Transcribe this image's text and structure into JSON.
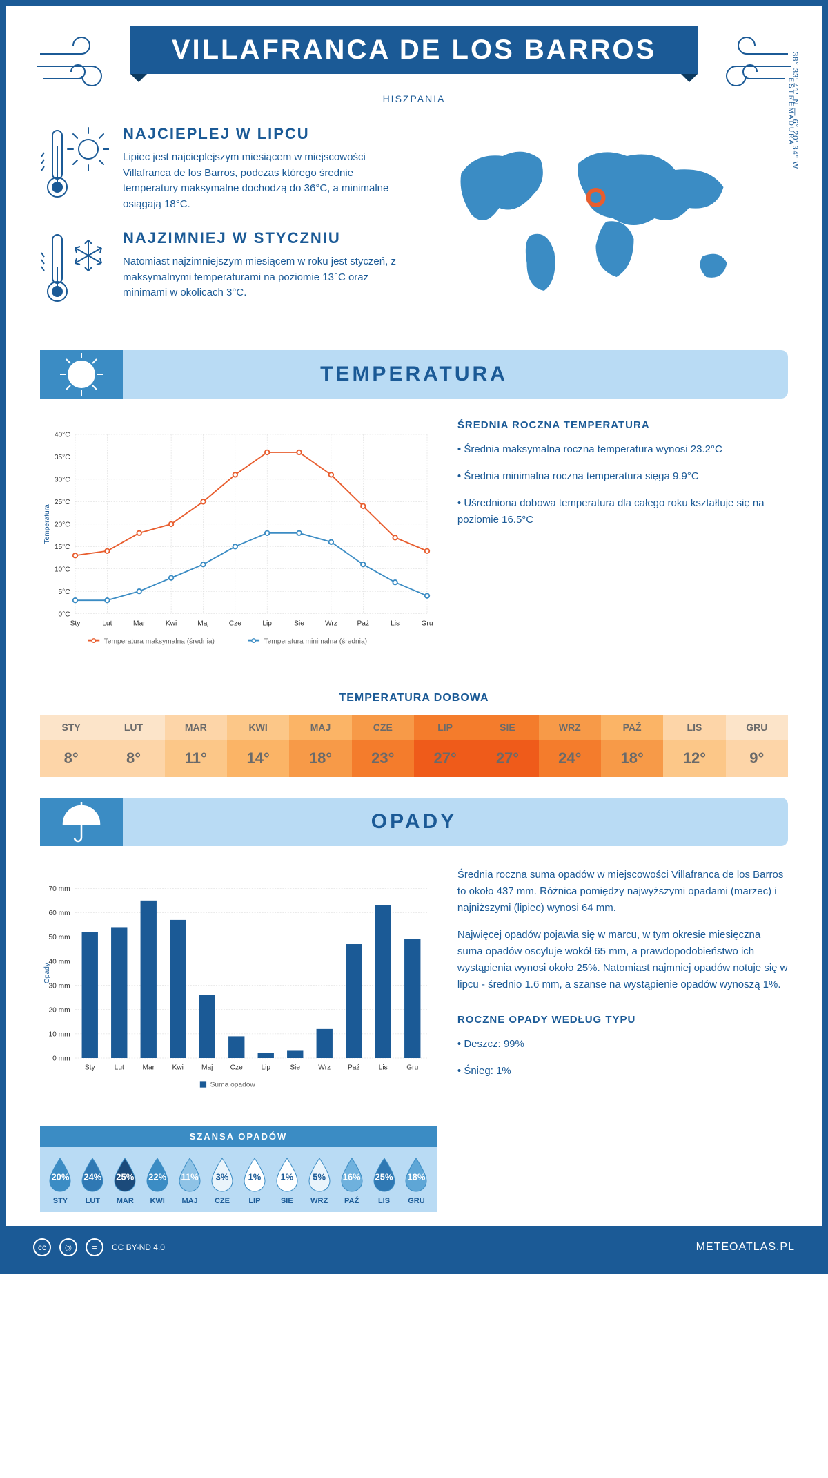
{
  "header": {
    "title": "VILLAFRANCA DE LOS BARROS",
    "subtitle": "HISZPANIA",
    "coordinates": "38° 33' 41\" N — 6° 20' 34\" W",
    "region": "ESTREMADURA"
  },
  "facts": {
    "warmest": {
      "title": "NAJCIEPLEJ W LIPCU",
      "text": "Lipiec jest najcieplejszym miesiącem w miejscowości Villafranca de los Barros, podczas którego średnie temperatury maksymalne dochodzą do 36°C, a minimalne osiągają 18°C."
    },
    "coldest": {
      "title": "NAJZIMNIEJ W STYCZNIU",
      "text": "Natomiast najzimniejszym miesiącem w roku jest styczeń, z maksymalnymi temperaturami na poziomie 13°C oraz minimami w okolicach 3°C."
    }
  },
  "temperature": {
    "section_title": "TEMPERATURA",
    "chart": {
      "type": "line",
      "y_label": "Temperatura",
      "months": [
        "Sty",
        "Lut",
        "Mar",
        "Kwi",
        "Maj",
        "Cze",
        "Lip",
        "Sie",
        "Wrz",
        "Paź",
        "Lis",
        "Gru"
      ],
      "y_ticks": [
        "0°C",
        "5°C",
        "10°C",
        "15°C",
        "20°C",
        "25°C",
        "30°C",
        "35°C",
        "40°C"
      ],
      "y_min": 0,
      "y_max": 40,
      "series": {
        "max": {
          "label": "Temperatura maksymalna (średnia)",
          "color": "#e85d2e",
          "values": [
            13,
            14,
            18,
            20,
            25,
            31,
            36,
            36,
            31,
            24,
            17,
            14
          ]
        },
        "min": {
          "label": "Temperatura minimalna (średnia)",
          "color": "#3b8cc4",
          "values": [
            3,
            3,
            5,
            8,
            11,
            15,
            18,
            18,
            16,
            11,
            7,
            4
          ]
        }
      },
      "background": "#ffffff",
      "grid_color": "#d8d8d8"
    },
    "side": {
      "heading": "ŚREDNIA ROCZNA TEMPERATURA",
      "bullets": [
        "• Średnia maksymalna roczna temperatura wynosi 23.2°C",
        "• Średnia minimalna roczna temperatura sięga 9.9°C",
        "• Uśredniona dobowa temperatura dla całego roku kształtuje się na poziomie 16.5°C"
      ]
    },
    "daily_table": {
      "title": "TEMPERATURA DOBOWA",
      "months": [
        "STY",
        "LUT",
        "MAR",
        "KWI",
        "MAJ",
        "CZE",
        "LIP",
        "SIE",
        "WRZ",
        "PAŹ",
        "LIS",
        "GRU"
      ],
      "values": [
        "8°",
        "8°",
        "11°",
        "14°",
        "18°",
        "23°",
        "27°",
        "27°",
        "24°",
        "18°",
        "12°",
        "9°"
      ],
      "header_colors": [
        "#fce4c9",
        "#fce4c9",
        "#fdd5a8",
        "#fcc788",
        "#fbb466",
        "#f79a48",
        "#f47c2c",
        "#f47c2c",
        "#f79a48",
        "#fbb466",
        "#fdd5a8",
        "#fce4c9"
      ],
      "value_colors": [
        "#fdd5a8",
        "#fdd5a8",
        "#fcc788",
        "#fbb466",
        "#f79a48",
        "#f47c2c",
        "#ef5b1a",
        "#ef5b1a",
        "#f47c2c",
        "#f79a48",
        "#fcc788",
        "#fdd5a8"
      ],
      "text_color": "#6a6a6a"
    }
  },
  "precipitation": {
    "section_title": "OPADY",
    "chart": {
      "type": "bar",
      "y_label": "Opady",
      "legend_label": "Suma opadów",
      "months": [
        "Sty",
        "Lut",
        "Mar",
        "Kwi",
        "Maj",
        "Cze",
        "Lip",
        "Sie",
        "Wrz",
        "Paź",
        "Lis",
        "Gru"
      ],
      "y_ticks": [
        "0 mm",
        "10 mm",
        "20 mm",
        "30 mm",
        "40 mm",
        "50 mm",
        "60 mm",
        "70 mm"
      ],
      "y_min": 0,
      "y_max": 70,
      "values": [
        52,
        54,
        65,
        57,
        26,
        9,
        2,
        3,
        12,
        47,
        63,
        49
      ],
      "bar_color": "#1b5a96",
      "background": "#ffffff",
      "grid_color": "#d8d8d8"
    },
    "side": {
      "para1": "Średnia roczna suma opadów w miejscowości Villafranca de los Barros to około 437 mm. Różnica pomiędzy najwyższymi opadami (marzec) i najniższymi (lipiec) wynosi 64 mm.",
      "para2": "Najwięcej opadów pojawia się w marcu, w tym okresie miesięczna suma opadów oscyluje wokół 65 mm, a prawdopodobieństwo ich wystąpienia wynosi około 25%. Natomiast najmniej opadów notuje się w lipcu - średnio 1.6 mm, a szanse na wystąpienie opadów wynoszą 1%.",
      "type_heading": "ROCZNE OPADY WEDŁUG TYPU",
      "type_bullets": [
        "• Deszcz: 99%",
        "• Śnieg: 1%"
      ]
    },
    "chance": {
      "title": "SZANSA OPADÓW",
      "months": [
        "STY",
        "LUT",
        "MAR",
        "KWI",
        "MAJ",
        "CZE",
        "LIP",
        "SIE",
        "WRZ",
        "PAŹ",
        "LIS",
        "GRU"
      ],
      "percents": [
        "20%",
        "24%",
        "25%",
        "22%",
        "11%",
        "3%",
        "1%",
        "1%",
        "5%",
        "16%",
        "25%",
        "18%"
      ],
      "fill_colors": [
        "#3b8cc4",
        "#2f78b3",
        "#1b4a7a",
        "#3b8cc4",
        "#8fc3e6",
        "#eaf4fb",
        "#ffffff",
        "#ffffff",
        "#eaf4fb",
        "#6fb1dd",
        "#2f78b3",
        "#5ea6d6"
      ],
      "text_colors": [
        "#ffffff",
        "#ffffff",
        "#ffffff",
        "#ffffff",
        "#ffffff",
        "#1b5a96",
        "#1b5a96",
        "#1b5a96",
        "#1b5a96",
        "#ffffff",
        "#ffffff",
        "#ffffff"
      ],
      "row_bg": "#b9dbf4",
      "header_bg": "#3b8cc4"
    }
  },
  "footer": {
    "license": "CC BY-ND 4.0",
    "site": "METEOATLAS.PL"
  },
  "colors": {
    "primary": "#1b5a96",
    "light_blue": "#b9dbf4",
    "mid_blue": "#3b8cc4"
  }
}
